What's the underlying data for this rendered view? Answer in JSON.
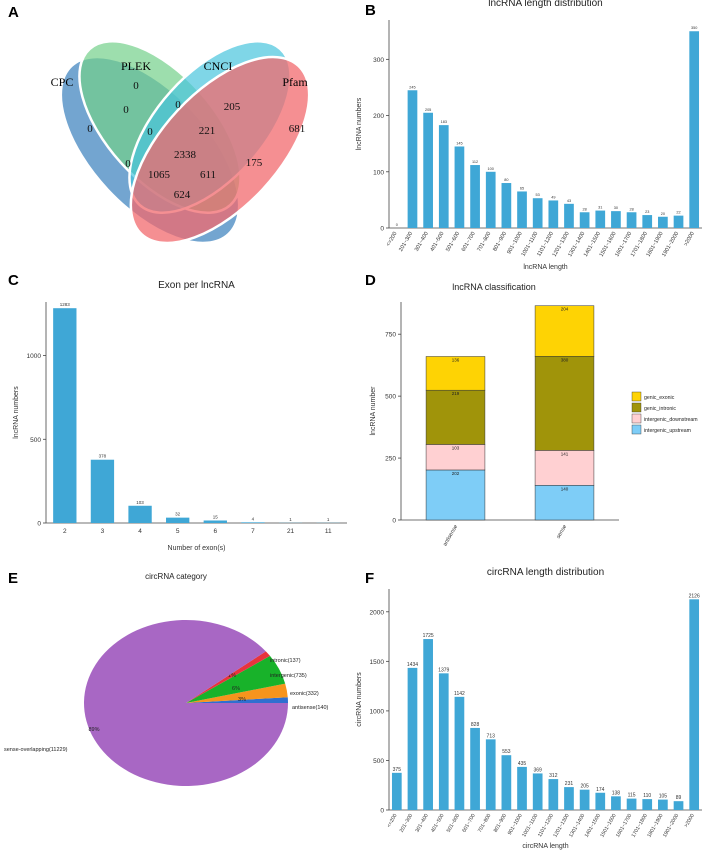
{
  "panels": {
    "a": "A",
    "b": "B",
    "c": "C",
    "d": "D",
    "e": "E",
    "f": "F"
  },
  "venn": {
    "sets": [
      {
        "name": "CPC",
        "color": "#5b95c8"
      },
      {
        "name": "PLEK",
        "color": "#74d08a"
      },
      {
        "name": "CNCI",
        "color": "#48c4dd"
      },
      {
        "name": "Pfam",
        "color": "#f26a6e"
      }
    ],
    "regions": [
      "0",
      "0",
      "0",
      "205",
      "0",
      "0",
      "221",
      "681",
      "2338",
      "0",
      "175",
      "1065",
      "611",
      "624"
    ]
  },
  "chart_data": [
    {
      "id": "B",
      "type": "bar",
      "title": "lncRNA length distribution",
      "xlabel": "lncRNA length",
      "ylabel": "lncRNA numbers",
      "ylim": [
        0,
        370
      ],
      "yticks": [
        0,
        100,
        200,
        300
      ],
      "color": "#3fa7d6",
      "categories": [
        "<=200",
        "201~300",
        "301~400",
        "401~500",
        "501~600",
        "601~700",
        "701~800",
        "801~900",
        "901~1000",
        "1001~1100",
        "1101~1200",
        "1201~1300",
        "1301~1400",
        "1401~1500",
        "1501~1600",
        "1601~1700",
        "1701~1800",
        "1801~1900",
        "1901~2000",
        ">2000"
      ],
      "values": [
        0,
        245,
        205,
        183,
        145,
        112,
        100,
        80,
        65,
        53,
        49,
        43,
        28,
        31,
        30,
        28,
        23,
        20,
        22,
        350
      ],
      "labels": [
        "0",
        "245",
        "205",
        "183",
        "145",
        "112",
        "100",
        "80",
        "65",
        "53",
        "49",
        "43",
        "28",
        "31",
        "30",
        "28",
        "23",
        "20",
        "22",
        "350"
      ]
    },
    {
      "id": "C",
      "type": "bar",
      "title": "Exon per lncRNA",
      "xlabel": "Number of exon(s)",
      "ylabel": "lncRNA numbers",
      "ylim": [
        0,
        1320
      ],
      "yticks": [
        0,
        500,
        1000
      ],
      "color": "#3fa7d6",
      "categories": [
        "2",
        "3",
        "4",
        "5",
        "6",
        "7",
        "21",
        "11"
      ],
      "values": [
        1283,
        378,
        103,
        32,
        15,
        4,
        1,
        1
      ],
      "labels": [
        "1283",
        "378",
        "103",
        "32",
        "15",
        "4",
        "1",
        "1"
      ]
    },
    {
      "id": "D",
      "type": "bar",
      "stacked": true,
      "title": "lncRNA classification",
      "xlabel": "",
      "ylabel": "lncRNA number",
      "ylim": [
        0,
        880
      ],
      "yticks": [
        0,
        250,
        500,
        750
      ],
      "categories": [
        "antisense",
        "sense"
      ],
      "series": [
        {
          "name": "intergenic_upstream",
          "color": "#7ecdf7",
          "values": [
            202,
            140
          ],
          "labels": [
            "202",
            "140"
          ]
        },
        {
          "name": "intergenic_downstream",
          "color": "#ffd0d2",
          "values": [
            103,
            141
          ],
          "labels": [
            "103",
            "141"
          ]
        },
        {
          "name": "genic_intronic",
          "color": "#a0940a",
          "values": [
            219,
            380
          ],
          "labels": [
            "219",
            "380"
          ]
        },
        {
          "name": "genic_exonic",
          "color": "#fed304",
          "values": [
            136,
            204
          ],
          "labels": [
            "136",
            "204"
          ]
        }
      ],
      "legend_order": [
        "genic_exonic",
        "genic_intronic",
        "intergenic_downstream",
        "intergenic_upstream"
      ],
      "legend_position": "right"
    },
    {
      "id": "E",
      "type": "pie",
      "title": "circRNA category",
      "slices": [
        {
          "label": "sense-overlapping(11229)",
          "value": 11229,
          "color": "#a867c4",
          "pct": "89%"
        },
        {
          "label": "intronic(137)",
          "value": 137,
          "color": "#e8343d",
          "pct": "1%"
        },
        {
          "label": "intergenic(735)",
          "value": 735,
          "color": "#18b22a",
          "pct": "6%"
        },
        {
          "label": "exonic(332)",
          "value": 332,
          "color": "#f7941d",
          "pct": "3%"
        },
        {
          "label": "antisense(140)",
          "value": 140,
          "color": "#2f6fd0",
          "pct": "1%"
        }
      ]
    },
    {
      "id": "F",
      "type": "bar",
      "title": "circRNA length distribution",
      "xlabel": "circRNA length",
      "ylabel": "circRNA numbers",
      "ylim": [
        0,
        2230
      ],
      "yticks": [
        0,
        500,
        1000,
        1500,
        2000
      ],
      "color": "#3fa7d6",
      "categories": [
        "<=200",
        "201~300",
        "301~400",
        "401~500",
        "501~600",
        "601~700",
        "701~800",
        "801~900",
        "901~1000",
        "1001~1100",
        "1101~1200",
        "1201~1300",
        "1301~1400",
        "1401~1500",
        "1501~1600",
        "1601~1700",
        "1701~1800",
        "1801~1900",
        "1901~2000",
        ">2000"
      ],
      "values": [
        375,
        1434,
        1725,
        1379,
        1142,
        828,
        713,
        553,
        435,
        369,
        312,
        231,
        205,
        174,
        138,
        115,
        110,
        105,
        89,
        2126
      ],
      "labels": [
        "375",
        "1434",
        "1725",
        "1379",
        "1142",
        "828",
        "713",
        "553",
        "435",
        "369",
        "312",
        "231",
        "205",
        "174",
        "138",
        "115",
        "110",
        "105",
        "89",
        "2126"
      ]
    }
  ]
}
